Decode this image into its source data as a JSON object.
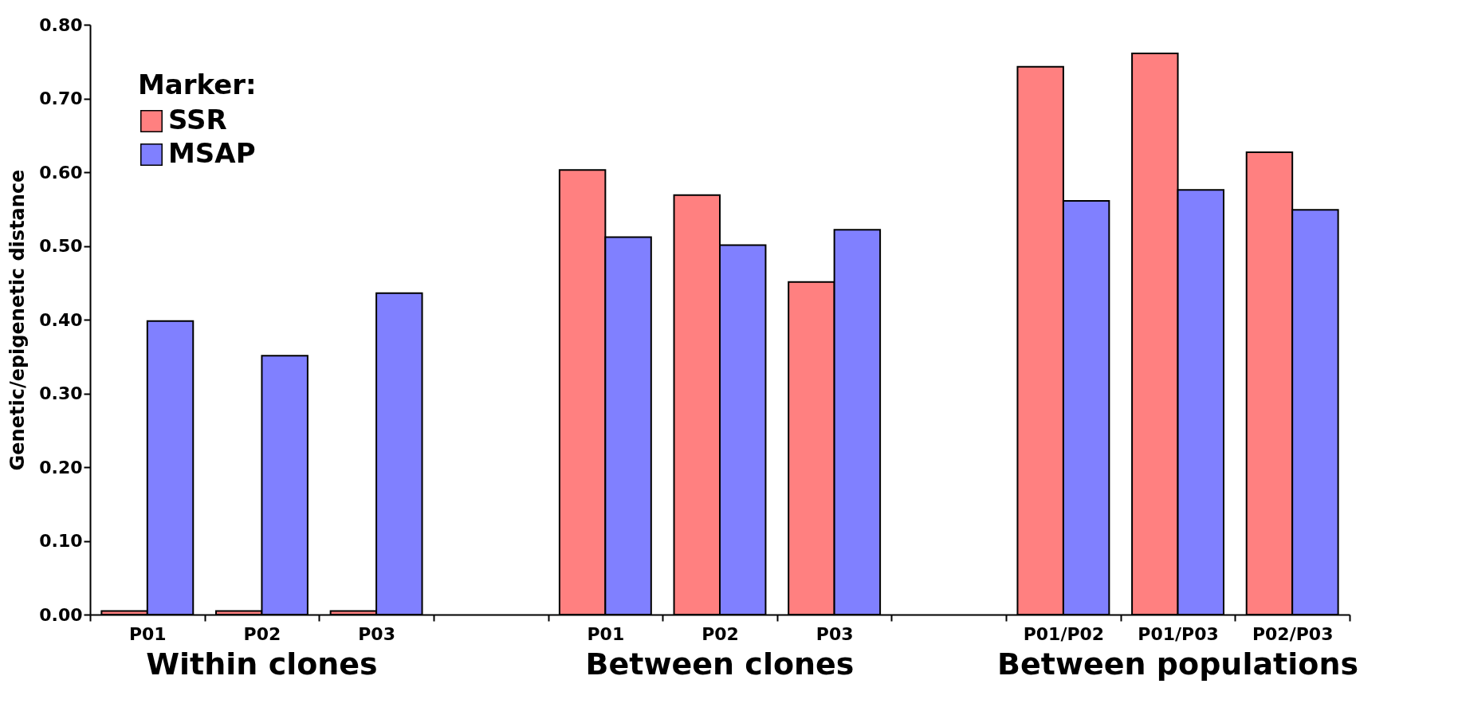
{
  "chart_data": {
    "type": "bar",
    "ylabel": "Genetic/epigenetic distance",
    "legend_title": "Marker:",
    "legend": "top left",
    "categories": [
      "P01",
      "P02",
      "P03",
      null,
      "P01",
      "P02",
      "P03",
      null,
      "P01/P02",
      "P01/P03",
      "P02/P03"
    ],
    "series": [
      {
        "name": "SSR",
        "color": "#ff8080",
        "values": [
          0.005,
          0.005,
          0.005,
          null,
          0.603,
          0.569,
          0.451,
          null,
          0.743,
          0.761,
          0.627
        ]
      },
      {
        "name": "MSAP",
        "color": "#8080ff",
        "values": [
          0.398,
          0.351,
          0.436,
          null,
          0.512,
          0.501,
          0.522,
          null,
          0.561,
          0.576,
          0.549
        ]
      }
    ],
    "ylim": [
      0,
      0.8
    ],
    "yticks": [
      {
        "value": 0,
        "label": "0.00"
      },
      {
        "value": 0.1,
        "label": "0.10"
      },
      {
        "value": 0.2,
        "label": "0.20"
      },
      {
        "value": 0.3,
        "label": "0.30"
      },
      {
        "value": 0.4,
        "label": "0.40"
      },
      {
        "value": 0.5,
        "label": "0.50"
      },
      {
        "value": 0.6,
        "label": "0.60"
      },
      {
        "value": 0.7,
        "label": "0.70"
      },
      {
        "value": 0.8,
        "label": "0.80"
      }
    ],
    "grid": false,
    "annotations": [
      "Within clones",
      "Between clones",
      "Between populations"
    ]
  }
}
